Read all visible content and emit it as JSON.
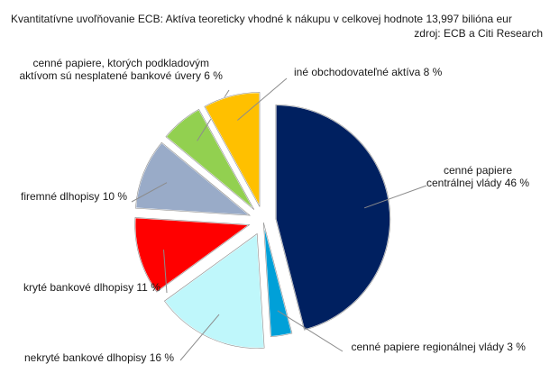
{
  "chart_data": {
    "type": "pie",
    "title": "Kvantitatívne uvoľňovanie ECB: Aktíva teoreticky vhodné k nákupu v celkovej hodnote 13,997 bilióna eur",
    "source": "zdroj: ECB a Citi Research",
    "slices": [
      {
        "line1": "cenné papiere",
        "line2": "centrálnej vlády 46 %",
        "value": 46,
        "color": "#002060",
        "exploded": true
      },
      {
        "line1": "cenné papiere regionálnej vlády 3 %",
        "line2": "",
        "value": 3,
        "color": "#00a0d8",
        "exploded": false
      },
      {
        "line1": "nekryté bankové dlhopisy 16 %",
        "line2": "",
        "value": 16,
        "color": "#bff7fb",
        "exploded": true
      },
      {
        "line1": "kryté bankové dlhopisy 11 %",
        "line2": "",
        "value": 11,
        "color": "#ff0000",
        "exploded": true
      },
      {
        "line1": "firemné dlhopisy 10 %",
        "line2": "",
        "value": 10,
        "color": "#99abc8",
        "exploded": true
      },
      {
        "line1": "cenné papiere, ktorých podkladovým",
        "line2": "aktívom sú nesplatené bankové úvery 6 %",
        "value": 6,
        "color": "#92d050",
        "exploded": true
      },
      {
        "line1": "iné obchodovateľné aktíva 8 %",
        "line2": "",
        "value": 8,
        "color": "#ffc000",
        "exploded": true
      }
    ],
    "legend": "none"
  }
}
